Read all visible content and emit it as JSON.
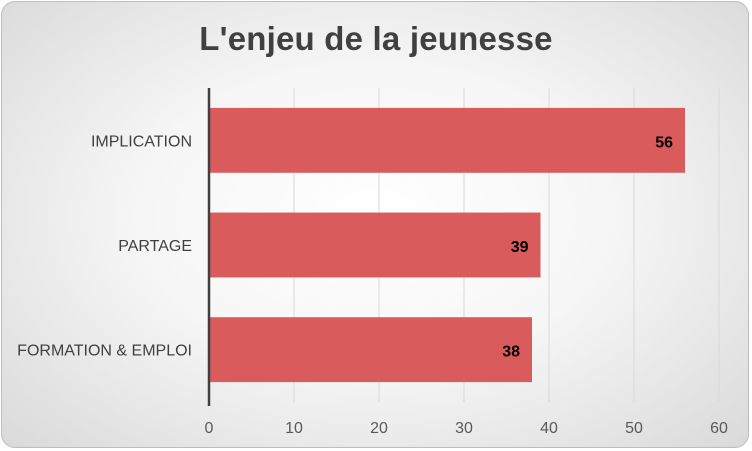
{
  "chart_data": {
    "type": "bar",
    "orientation": "horizontal",
    "title": "L'enjeu de la jeunesse",
    "categories": [
      "IMPLICATION",
      "PARTAGE",
      "FORMATION & EMPLOI"
    ],
    "values": [
      56,
      39,
      38
    ],
    "data_labels": [
      "56",
      "39",
      "38"
    ],
    "xlim": [
      0,
      60
    ],
    "x_ticks": [
      "0",
      "10",
      "20",
      "30",
      "40",
      "50",
      "60"
    ],
    "grid": true,
    "legend": "none",
    "colors": {
      "bar": "#d95b5c",
      "grid": "#d9d9d9",
      "axis": "#404040"
    }
  }
}
